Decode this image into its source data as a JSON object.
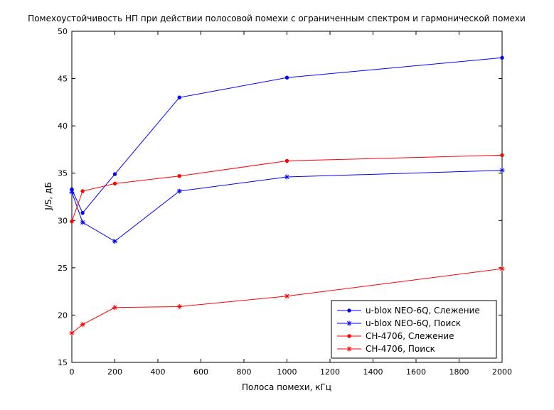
{
  "chart_data": {
    "type": "line",
    "title": "Помехоустойчивость НП при действии полосовой помехи с ограниченным спектром и гармонической помехи",
    "xlabel": "Полоса помехи, кГц",
    "ylabel": "J/S, дБ",
    "xlim": [
      0,
      2000
    ],
    "ylim": [
      15,
      50
    ],
    "xticks": [
      0,
      200,
      400,
      600,
      800,
      1000,
      1200,
      1400,
      1600,
      1800,
      2000
    ],
    "yticks": [
      15,
      20,
      25,
      30,
      35,
      40,
      45,
      50
    ],
    "grid": false,
    "legend_position": "bottom-right",
    "series": [
      {
        "name": "u-blox NEO-6Q, Слежение",
        "color": "#0000ff",
        "marker": "dot",
        "x": [
          0,
          50,
          200,
          500,
          1000,
          2000
        ],
        "y": [
          33.3,
          30.8,
          34.9,
          43.0,
          45.1,
          47.2
        ]
      },
      {
        "name": "u-blox NEO-6Q, Поиск",
        "color": "#0000ff",
        "marker": "star",
        "x": [
          0,
          50,
          200,
          500,
          1000,
          2000
        ],
        "y": [
          33.0,
          29.8,
          27.8,
          33.1,
          34.6,
          35.3
        ]
      },
      {
        "name": "CH-4706, Слежение",
        "color": "#ff0000",
        "marker": "dot",
        "x": [
          0,
          50,
          200,
          500,
          1000,
          2000
        ],
        "y": [
          29.9,
          33.1,
          33.9,
          34.7,
          36.3,
          36.9
        ]
      },
      {
        "name": "CH-4706, Поиск",
        "color": "#ff0000",
        "marker": "star",
        "x": [
          0,
          50,
          200,
          500,
          1000,
          2000
        ],
        "y": [
          18.1,
          19.0,
          20.8,
          20.9,
          22.0,
          24.9
        ]
      }
    ]
  }
}
